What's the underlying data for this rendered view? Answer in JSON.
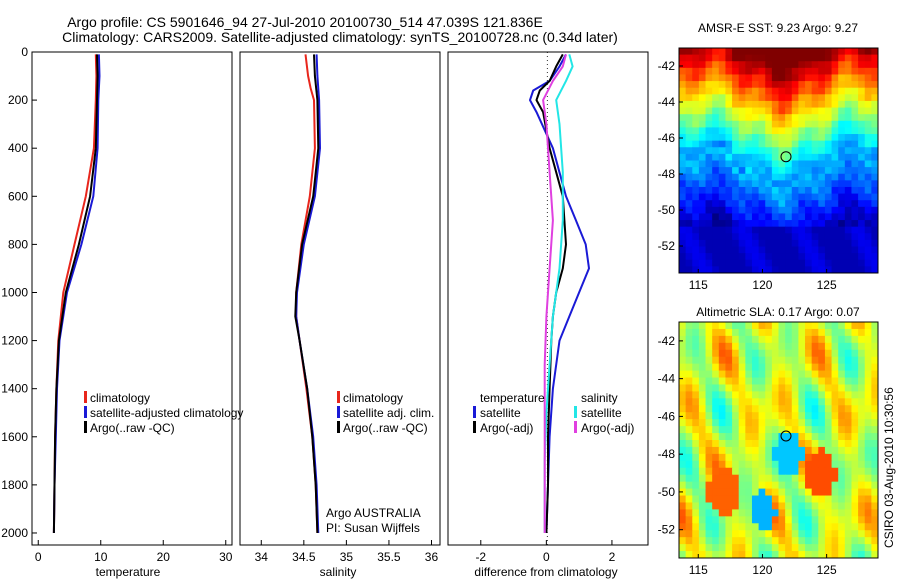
{
  "figure": {
    "title_line1": "Argo profile: CS 5901646_94 27-Jul-2010 20100730_514 47.039S 121.836E",
    "title_line2": "Climatology: CARS2009. Satellite-adjusted climatology: synTS_20100728.nc (0.34d later)",
    "credit_line1": "Argo AUSTRALIA",
    "credit_line2": "PI: Susan Wijffels",
    "timestamp": "CSIRO 03-Aug-2010 10:30:56"
  },
  "colors": {
    "climatology": "#e8261c",
    "satellite": "#1a1ad6",
    "argo": "#000000",
    "satellite_salinity": "#22e6e6",
    "argo_adj_salinity": "#e040e0"
  },
  "chart_data": [
    {
      "type": "line",
      "name": "temperature-profile",
      "xlabel": "temperature",
      "xlim": [
        -1,
        31
      ],
      "ylim": [
        2050,
        0
      ],
      "x_ticks": [
        "0",
        "10",
        "20",
        "30"
      ],
      "x_tick_values": [
        0,
        10,
        20,
        30
      ],
      "y_ticks": [
        "0",
        "200",
        "400",
        "600",
        "800",
        "1000",
        "1200",
        "1400",
        "1600",
        "1800",
        "2000"
      ],
      "y_tick_values": [
        0,
        200,
        400,
        600,
        800,
        1000,
        1200,
        1400,
        1600,
        1800,
        2000
      ],
      "legend": [
        "climatology",
        "satellite-adjusted climatology",
        "Argo(..raw -QC)"
      ],
      "series": [
        {
          "name": "climatology",
          "color": "climatology",
          "depth": [
            10,
            100,
            200,
            400,
            600,
            800,
            1000,
            1200,
            1400,
            1600,
            1800,
            2000
          ],
          "values": [
            9.2,
            9.3,
            9.2,
            8.9,
            7.6,
            5.8,
            4.0,
            3.2,
            2.9,
            2.7,
            2.6,
            2.5
          ]
        },
        {
          "name": "satellite-adjusted climatology",
          "color": "satellite",
          "depth": [
            10,
            100,
            200,
            400,
            600,
            800,
            1000,
            1200,
            1400,
            1600,
            1800,
            2000
          ],
          "values": [
            9.7,
            9.8,
            9.6,
            9.5,
            8.8,
            6.9,
            4.6,
            3.4,
            3.0,
            2.8,
            2.6,
            2.5
          ]
        },
        {
          "name": "Argo(..raw -QC)",
          "color": "argo",
          "depth": [
            10,
            100,
            200,
            400,
            600,
            800,
            1000,
            1200,
            1400,
            1600,
            1800,
            2000
          ],
          "values": [
            9.4,
            9.5,
            9.4,
            9.2,
            8.3,
            6.5,
            4.4,
            3.3,
            2.9,
            2.7,
            2.6,
            2.5
          ]
        }
      ]
    },
    {
      "type": "line",
      "name": "salinity-profile",
      "xlabel": "salinity",
      "xlim": [
        33.75,
        36.1
      ],
      "ylim": [
        2050,
        0
      ],
      "x_ticks": [
        "34",
        "34.5",
        "35",
        "35.5",
        "36"
      ],
      "x_tick_values": [
        34,
        34.5,
        35,
        35.5,
        36
      ],
      "legend": [
        "climatology",
        "satellite adj. clim.",
        "Argo(..raw -QC)"
      ],
      "series": [
        {
          "name": "climatology",
          "color": "climatology",
          "depth": [
            10,
            100,
            150,
            200,
            400,
            600,
            800,
            1000,
            1100,
            1200,
            1400,
            1600,
            1800,
            2000
          ],
          "values": [
            34.52,
            34.55,
            34.58,
            34.62,
            34.63,
            34.57,
            34.47,
            34.41,
            34.41,
            34.45,
            34.53,
            34.6,
            34.64,
            34.66
          ]
        },
        {
          "name": "satellite adj. clim.",
          "color": "satellite",
          "depth": [
            10,
            100,
            200,
            400,
            600,
            800,
            1000,
            1100,
            1200,
            1400,
            1600,
            1800,
            2000
          ],
          "values": [
            34.65,
            34.66,
            34.68,
            34.69,
            34.63,
            34.5,
            34.42,
            34.41,
            34.45,
            34.54,
            34.61,
            34.65,
            34.67
          ]
        },
        {
          "name": "Argo(..raw -QC)",
          "color": "argo",
          "depth": [
            10,
            100,
            200,
            400,
            600,
            800,
            1000,
            1100,
            1200,
            1400,
            1600,
            1800,
            2000
          ],
          "values": [
            34.62,
            34.63,
            34.66,
            34.67,
            34.61,
            34.48,
            34.41,
            34.4,
            34.45,
            34.54,
            34.6,
            34.64,
            34.66
          ]
        }
      ]
    },
    {
      "type": "line",
      "name": "difference-profile",
      "xlabel": "difference from climatology",
      "xlim": [
        -3,
        3.1
      ],
      "ylim": [
        2050,
        0
      ],
      "x_ticks": [
        "-2",
        "0",
        "2"
      ],
      "x_tick_values": [
        -2,
        0,
        2
      ],
      "legend_header_left": "temperature",
      "legend_header_right": "salinity",
      "legend_left": [
        "satellite",
        "Argo(-adj)"
      ],
      "legend_right": [
        "satellite",
        "Argo(-adj)"
      ],
      "series": [
        {
          "name": "temperature satellite",
          "color": "satellite",
          "depth": [
            10,
            60,
            120,
            160,
            200,
            250,
            400,
            600,
            700,
            800,
            900,
            1000,
            1100,
            1200,
            1400,
            1600,
            1800,
            2000
          ],
          "values": [
            0.6,
            0.4,
            0.1,
            -0.4,
            -0.5,
            -0.3,
            0.2,
            0.6,
            0.9,
            1.2,
            1.3,
            1.0,
            0.7,
            0.4,
            0.2,
            0.1,
            0.05,
            0.0
          ]
        },
        {
          "name": "temperature Argo(-adj)",
          "color": "argo",
          "depth": [
            10,
            60,
            120,
            160,
            200,
            250,
            400,
            600,
            800,
            900,
            1000,
            1100,
            1200,
            1400,
            1600,
            1800,
            2000
          ],
          "values": [
            0.5,
            0.3,
            0.1,
            -0.2,
            -0.3,
            -0.1,
            0.1,
            0.5,
            0.6,
            0.5,
            0.3,
            0.2,
            0.15,
            0.1,
            0.05,
            0.05,
            0.0
          ]
        },
        {
          "name": "salinity satellite",
          "color": "satellite_salinity",
          "depth": [
            10,
            60,
            120,
            200,
            300,
            500,
            700,
            900,
            1100,
            1300,
            1500,
            1700,
            1900,
            2000
          ],
          "values": [
            0.7,
            0.8,
            0.6,
            0.3,
            0.4,
            0.5,
            0.5,
            0.4,
            0.2,
            0.1,
            0.0,
            -0.05,
            -0.05,
            -0.05
          ]
        },
        {
          "name": "salinity Argo(-adj)",
          "color": "argo_adj_salinity",
          "depth": [
            10,
            60,
            120,
            200,
            300,
            500,
            700,
            900,
            1100,
            1300,
            1500,
            1700,
            1900,
            2000
          ],
          "values": [
            0.6,
            0.5,
            0.2,
            -0.1,
            0.0,
            0.1,
            0.2,
            0.1,
            0.0,
            -0.05,
            -0.05,
            -0.05,
            -0.05,
            -0.05
          ]
        }
      ]
    },
    {
      "type": "heatmap",
      "name": "sst-map",
      "title": "AMSR-E SST: 9.23 Argo: 9.27",
      "xlim": [
        113.5,
        129
      ],
      "ylim": [
        -53.5,
        -41
      ],
      "x_ticks": [
        "115",
        "120",
        "125"
      ],
      "x_tick_values": [
        115,
        120,
        125
      ],
      "y_ticks": [
        "-42",
        "-44",
        "-46",
        "-48",
        "-50",
        "-52"
      ],
      "y_tick_values": [
        -42,
        -44,
        -46,
        -48,
        -50,
        -52
      ],
      "marker": {
        "lon": 121.836,
        "lat": -47.039
      }
    },
    {
      "type": "heatmap",
      "name": "sla-map",
      "title": "Altimetric SLA: 0.17 Argo: 0.07",
      "xlim": [
        113.5,
        129
      ],
      "ylim": [
        -53.5,
        -41
      ],
      "x_ticks": [
        "115",
        "120",
        "125"
      ],
      "x_tick_values": [
        115,
        120,
        125
      ],
      "y_ticks": [
        "-42",
        "-44",
        "-46",
        "-48",
        "-50",
        "-52"
      ],
      "y_tick_values": [
        -42,
        -44,
        -46,
        -48,
        -50,
        -52
      ],
      "marker": {
        "lon": 121.836,
        "lat": -47.039
      }
    }
  ]
}
